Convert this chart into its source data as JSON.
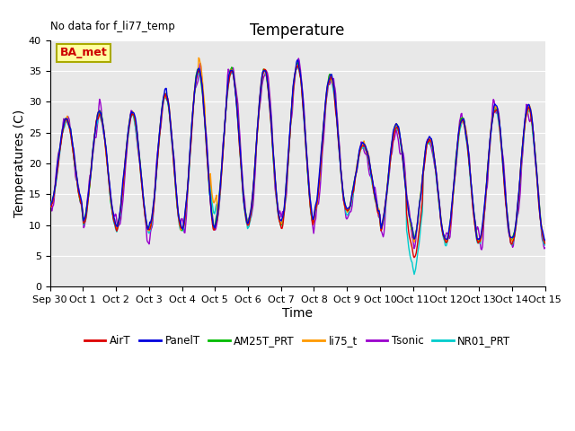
{
  "title": "Temperature",
  "xlabel": "Time",
  "ylabel": "Temperatures (C)",
  "annotation": "No data for f_li77_temp",
  "legend_label": "BA_met",
  "ylim": [
    0,
    40
  ],
  "yticks": [
    0,
    5,
    10,
    15,
    20,
    25,
    30,
    35,
    40
  ],
  "xtick_labels": [
    "Sep 30",
    "Oct 1",
    "Oct 2",
    "Oct 3",
    "Oct 4",
    "Oct 5",
    "Oct 6",
    "Oct 7",
    "Oct 8",
    "Oct 9",
    "Oct 10",
    "Oct 11",
    "Oct 12",
    "Oct 13",
    "Oct 14",
    "Oct 15"
  ],
  "series_colors": {
    "AirT": "#dd0000",
    "PanelT": "#0000dd",
    "AM25T_PRT": "#00bb00",
    "li75_t": "#ff9900",
    "Tsonic": "#9900cc",
    "NR01_PRT": "#00cccc"
  },
  "bg_color": "#e8e8e8",
  "grid_color": "#ffffff",
  "title_fontsize": 12,
  "label_fontsize": 10,
  "tick_fontsize": 8,
  "legend_box_facecolor": "#ffffa0",
  "legend_box_edgecolor": "#aaaa00",
  "legend_box_text_color": "#cc0000"
}
